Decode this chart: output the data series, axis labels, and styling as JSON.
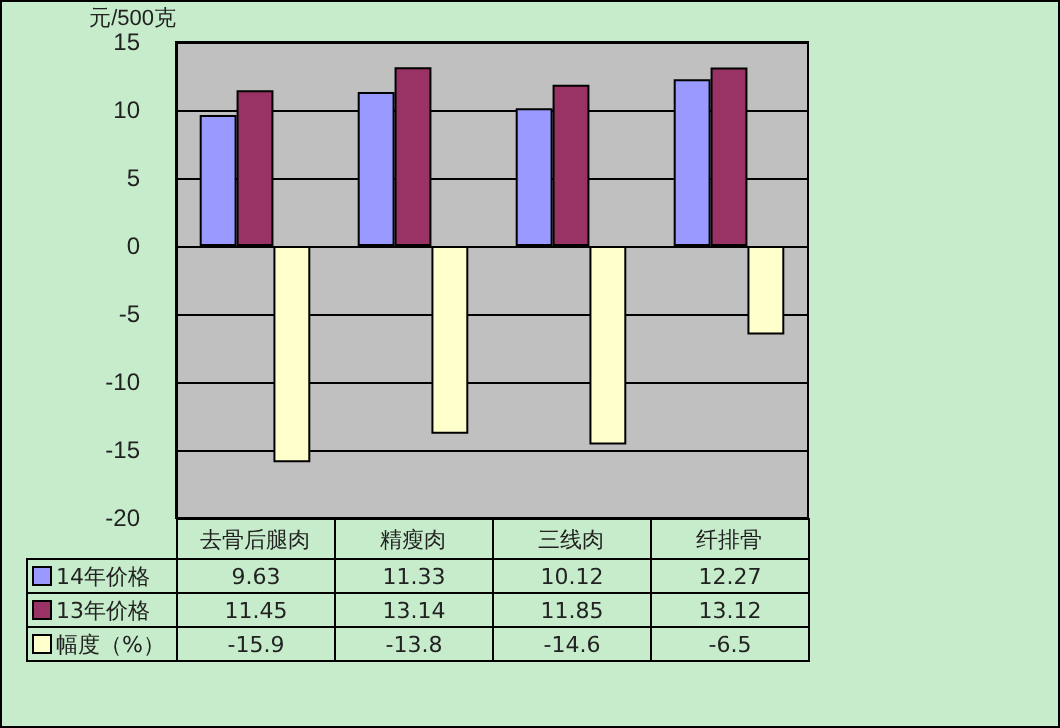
{
  "chart_data": {
    "type": "bar",
    "ylabel": "元/500克",
    "categories": [
      "去骨后腿肉",
      "精瘦肉",
      "三线肉",
      "纤排骨"
    ],
    "series": [
      {
        "name": "14年价格",
        "color": "#9999ff",
        "values": [
          9.63,
          11.33,
          10.12,
          12.27
        ]
      },
      {
        "name": "13年价格",
        "color": "#993366",
        "values": [
          11.45,
          13.14,
          11.85,
          13.12
        ]
      },
      {
        "name": "幅度（%）",
        "color": "#ffffcc",
        "values": [
          -15.9,
          -13.8,
          -14.6,
          -6.5
        ]
      }
    ],
    "ylim": [
      -20,
      15
    ],
    "yticks": [
      -20,
      -15,
      -10,
      -5,
      0,
      5,
      10,
      15
    ],
    "grid": "y",
    "legend": "bottom",
    "data_labels": true
  }
}
